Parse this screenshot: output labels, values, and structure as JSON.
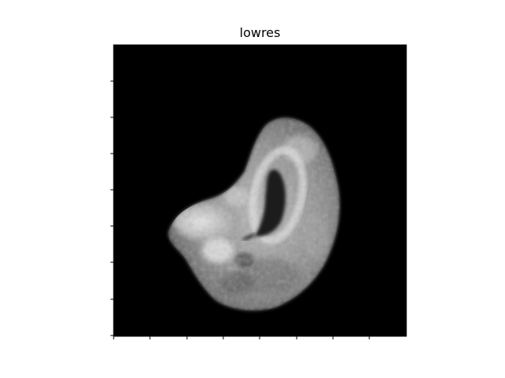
{
  "figure": {
    "title": "lowres"
  },
  "image": {
    "subject": "brain-mri-slice",
    "colormap": "gray",
    "background_color": "#000000"
  },
  "axes": {
    "frame_color": "#000000",
    "left_tick_count": 8,
    "bottom_tick_count": 8,
    "tick_labels_visible": false
  }
}
